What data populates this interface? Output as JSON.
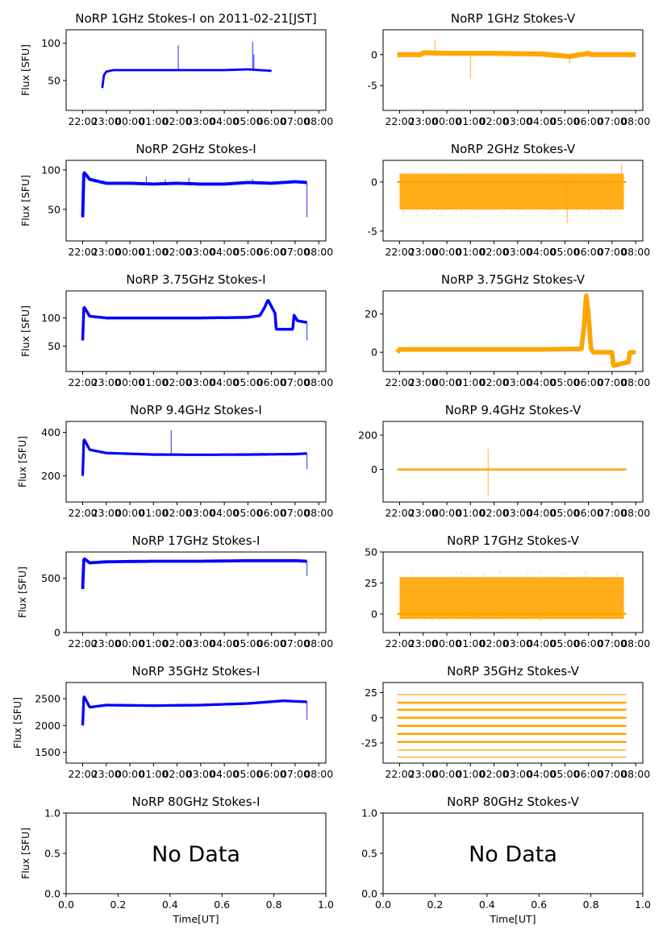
{
  "figure_title_left": "NoRP 1GHz Stokes-I on 2011-02-21[JST]",
  "colors": {
    "stokes_i": "#0000ff",
    "stokes_v": "#ffa500"
  },
  "time_ticks": [
    "22:00",
    "23:00",
    "00:00",
    "01:00",
    "02:00",
    "03:00",
    "04:00",
    "05:00",
    "06:00",
    "07:00",
    "08:00"
  ],
  "xlabel": "Time[UT]",
  "no_data_label": "No Data",
  "chart_data": [
    {
      "type": "scatter",
      "title": "NoRP 1GHz Stokes-I on 2011-02-21[JST]",
      "ylabel": "Flux [SFU]",
      "xlabel": "",
      "ylim": [
        10,
        118
      ],
      "yticks": [
        50,
        100
      ],
      "color": "#0000ff",
      "start": 0.83,
      "end": 8.0,
      "baseline": [
        [
          0.83,
          40
        ],
        [
          0.9,
          57
        ],
        [
          1.0,
          62
        ],
        [
          1.3,
          64
        ],
        [
          2.0,
          64
        ],
        [
          3.0,
          64
        ],
        [
          4.0,
          64
        ],
        [
          5.0,
          64
        ],
        [
          6.0,
          64
        ],
        [
          7.0,
          65
        ],
        [
          7.5,
          64
        ],
        [
          8.0,
          63
        ]
      ],
      "spikes": [
        [
          4.05,
          97
        ],
        [
          7.2,
          102
        ],
        [
          7.25,
          85
        ]
      ],
      "band": 1.5
    },
    {
      "type": "scatter",
      "title": "NoRP 1GHz Stokes-V",
      "ylabel": "",
      "xlabel": "",
      "ylim": [
        -9,
        4
      ],
      "yticks": [
        -5,
        0
      ],
      "color": "#ffa500",
      "start": -0.1,
      "end": 10.0,
      "baseline": [
        [
          -0.1,
          0
        ],
        [
          0.9,
          0
        ],
        [
          1.0,
          0.3
        ],
        [
          2,
          0.2
        ],
        [
          4,
          0.2
        ],
        [
          6,
          0.1
        ],
        [
          7.2,
          -0.3
        ],
        [
          8,
          0.2
        ],
        [
          8.1,
          0
        ],
        [
          10,
          0
        ]
      ],
      "spikes": [
        [
          7.2,
          -1.5
        ],
        [
          3.0,
          -3.8
        ],
        [
          1.5,
          2.5
        ]
      ],
      "band": 0.4
    },
    {
      "type": "scatter",
      "title": "NoRP 2GHz Stokes-I",
      "ylabel": "Flux [SFU]",
      "xlabel": "",
      "ylim": [
        10,
        112
      ],
      "yticks": [
        50,
        100
      ],
      "color": "#0000ff",
      "start": 0.0,
      "end": 9.5,
      "baseline": [
        [
          0.0,
          40
        ],
        [
          0.05,
          97
        ],
        [
          0.3,
          88
        ],
        [
          1,
          83
        ],
        [
          2,
          83
        ],
        [
          3,
          82
        ],
        [
          4,
          83
        ],
        [
          5,
          82
        ],
        [
          6,
          82
        ],
        [
          7,
          84
        ],
        [
          8,
          83
        ],
        [
          9,
          85
        ],
        [
          9.5,
          84
        ]
      ],
      "spikes": [
        [
          2.7,
          92
        ],
        [
          3.5,
          88
        ],
        [
          4.5,
          90
        ],
        [
          7.2,
          88
        ],
        [
          9.5,
          40
        ]
      ],
      "band": 2
    },
    {
      "type": "scatter",
      "title": "NoRP 2GHz Stokes-V",
      "ylabel": "",
      "xlabel": "",
      "ylim": [
        -6,
        2.2
      ],
      "yticks": [
        -5,
        0
      ],
      "color": "#ffa500",
      "start": -0.1,
      "end": 9.6,
      "baseline": [
        [
          -0.1,
          0
        ],
        [
          10,
          0
        ]
      ],
      "spikes": [
        [
          7.1,
          -4.2
        ],
        [
          9.4,
          1.8
        ]
      ],
      "band": 0,
      "noise": [
        0,
        9.5,
        -3.5,
        1.0
      ]
    },
    {
      "type": "scatter",
      "title": "NoRP 3.75GHz Stokes-I",
      "ylabel": "Flux [SFU]",
      "xlabel": "",
      "ylim": [
        5,
        148
      ],
      "yticks": [
        50,
        100
      ],
      "color": "#0000ff",
      "start": 0.0,
      "end": 9.5,
      "baseline": [
        [
          0.0,
          60
        ],
        [
          0.05,
          120
        ],
        [
          0.3,
          103
        ],
        [
          1,
          100
        ],
        [
          3,
          100
        ],
        [
          5,
          100
        ],
        [
          7,
          101
        ],
        [
          7.5,
          104
        ],
        [
          7.7,
          118
        ],
        [
          7.85,
          132
        ],
        [
          8.0,
          120
        ],
        [
          8.15,
          108
        ],
        [
          8.2,
          80
        ],
        [
          8.9,
          80
        ],
        [
          8.95,
          105
        ],
        [
          9.1,
          95
        ],
        [
          9.5,
          92
        ]
      ],
      "spikes": [
        [
          9.5,
          60
        ]
      ],
      "band": 2.5
    },
    {
      "type": "scatter",
      "title": "NoRP 3.75GHz Stokes-V",
      "ylabel": "",
      "xlabel": "",
      "ylim": [
        -10,
        32
      ],
      "yticks": [
        0,
        20
      ],
      "color": "#ffa500",
      "start": -0.1,
      "end": 10.0,
      "baseline": [
        [
          -0.1,
          0
        ],
        [
          0.0,
          1.5
        ],
        [
          3,
          1.5
        ],
        [
          6,
          1.5
        ],
        [
          7.7,
          1.8
        ],
        [
          7.8,
          12
        ],
        [
          7.9,
          30
        ],
        [
          8.0,
          20
        ],
        [
          8.1,
          2
        ],
        [
          8.2,
          0
        ],
        [
          9.0,
          0
        ],
        [
          9.05,
          -7
        ],
        [
          9.7,
          -5
        ],
        [
          9.75,
          0
        ],
        [
          10,
          0
        ]
      ],
      "spikes": [],
      "band": 1.2
    },
    {
      "type": "scatter",
      "title": "NoRP 9.4GHz Stokes-I",
      "ylabel": "Flux [SFU]",
      "xlabel": "",
      "ylim": [
        80,
        450
      ],
      "yticks": [
        200,
        400
      ],
      "color": "#0000ff",
      "start": 0.0,
      "end": 9.5,
      "baseline": [
        [
          0.0,
          200
        ],
        [
          0.05,
          370
        ],
        [
          0.3,
          320
        ],
        [
          1,
          305
        ],
        [
          3,
          298
        ],
        [
          5,
          297
        ],
        [
          7,
          298
        ],
        [
          9,
          300
        ],
        [
          9.5,
          303
        ]
      ],
      "spikes": [
        [
          3.75,
          410
        ],
        [
          9.5,
          230
        ]
      ],
      "band": 6
    },
    {
      "type": "scatter",
      "title": "NoRP 9.4GHz Stokes-V",
      "ylabel": "",
      "xlabel": "",
      "ylim": [
        -190,
        280
      ],
      "yticks": [
        0,
        200
      ],
      "color": "#ffa500",
      "start": -0.1,
      "end": 9.6,
      "baseline": [
        [
          -0.1,
          0
        ],
        [
          9.6,
          0
        ]
      ],
      "spikes": [
        [
          3.75,
          120
        ],
        [
          3.75,
          -150
        ]
      ],
      "band": 5
    },
    {
      "type": "scatter",
      "title": "NoRP 17GHz Stokes-I",
      "ylabel": "Flux [SFU]",
      "xlabel": "",
      "ylim": [
        0,
        740
      ],
      "yticks": [
        0,
        500
      ],
      "color": "#0000ff",
      "start": 0.0,
      "end": 9.5,
      "baseline": [
        [
          0.0,
          400
        ],
        [
          0.05,
          680
        ],
        [
          0.3,
          640
        ],
        [
          1,
          650
        ],
        [
          3,
          655
        ],
        [
          5,
          655
        ],
        [
          7,
          660
        ],
        [
          9,
          660
        ],
        [
          9.5,
          655
        ]
      ],
      "spikes": [
        [
          9.5,
          520
        ]
      ],
      "band": 14
    },
    {
      "type": "scatter",
      "title": "NoRP 17GHz Stokes-V",
      "ylabel": "",
      "xlabel": "",
      "ylim": [
        -15,
        50
      ],
      "yticks": [
        0,
        25,
        50
      ],
      "color": "#ffa500",
      "start": -0.1,
      "end": 9.6,
      "baseline": [
        [
          -0.1,
          0
        ],
        [
          9.6,
          0
        ]
      ],
      "spikes": [],
      "band": 0,
      "noise": [
        0,
        9.5,
        -5,
        35
      ]
    },
    {
      "type": "scatter",
      "title": "NoRP 35GHz Stokes-I",
      "ylabel": "Flux [SFU]",
      "xlabel": "",
      "ylim": [
        1300,
        2800
      ],
      "yticks": [
        1500,
        2000,
        2500
      ],
      "color": "#0000ff",
      "start": 0.0,
      "end": 9.5,
      "baseline": [
        [
          0.0,
          2000
        ],
        [
          0.05,
          2550
        ],
        [
          0.3,
          2340
        ],
        [
          1,
          2380
        ],
        [
          3,
          2370
        ],
        [
          5,
          2380
        ],
        [
          7,
          2410
        ],
        [
          8.5,
          2460
        ],
        [
          9.5,
          2440
        ]
      ],
      "spikes": [
        [
          9.5,
          2100
        ]
      ],
      "band": 25
    },
    {
      "type": "scatter",
      "title": "NoRP 35GHz Stokes-V",
      "ylabel": "",
      "xlabel": "",
      "ylim": [
        -45,
        35
      ],
      "yticks": [
        -25,
        0,
        25
      ],
      "color": "#ffa500",
      "start": -0.1,
      "end": 9.6,
      "baseline": [
        [
          -0.1,
          0
        ],
        [
          9.6,
          0
        ]
      ],
      "spikes": [],
      "band": 0,
      "levels": [
        23,
        15,
        8,
        0,
        -8,
        -16,
        -24,
        -32,
        -39
      ]
    },
    {
      "type": "empty",
      "title": "NoRP 80GHz Stokes-I",
      "ylabel": "Flux [SFU]",
      "xlabel": "Time[UT]",
      "xlim": [
        0,
        1
      ],
      "ylim": [
        0,
        1
      ],
      "xticks": [
        "0.0",
        "0.2",
        "0.4",
        "0.6",
        "0.8",
        "1.0"
      ],
      "yticks": [
        "0.0",
        "0.5",
        "1.0"
      ],
      "annotation": "No Data"
    },
    {
      "type": "empty",
      "title": "NoRP 80GHz Stokes-V",
      "ylabel": "",
      "xlabel": "Time[UT]",
      "xlim": [
        0,
        1
      ],
      "ylim": [
        0,
        1
      ],
      "xticks": [
        "0.0",
        "0.2",
        "0.4",
        "0.6",
        "0.8",
        "1.0"
      ],
      "yticks": [
        "0.0",
        "0.5",
        "1.0"
      ],
      "annotation": "No Data"
    }
  ]
}
